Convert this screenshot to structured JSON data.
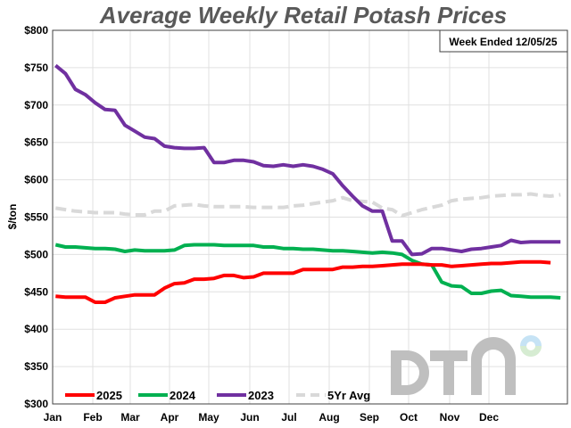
{
  "chart_data": {
    "type": "line",
    "title": "Average Weekly Retail Potash Prices",
    "annotation": "Week Ended 12/05/25",
    "xlabel": "",
    "ylabel": "$/ton",
    "x_tick_labels": [
      "Jan",
      "Feb",
      "Mar",
      "Apr",
      "May",
      "Jun",
      "Jul",
      "Aug",
      "Sep",
      "Oct",
      "Nov",
      "Dec"
    ],
    "y_tick_labels": [
      "$300",
      "$350",
      "$400",
      "$450",
      "$500",
      "$550",
      "$600",
      "$650",
      "$700",
      "$750",
      "$800"
    ],
    "ylim": [
      300,
      800
    ],
    "x_unit": "week of year (values listed weekly from January)",
    "grid": true,
    "legend_position": "bottom-left",
    "logo_text": "DTN",
    "series": [
      {
        "name": "2025",
        "color": "#ff0000",
        "style": "solid",
        "values": [
          444,
          443,
          443,
          443,
          436,
          436,
          442,
          444,
          446,
          446,
          446,
          455,
          461,
          462,
          467,
          467,
          468,
          472,
          472,
          469,
          470,
          475,
          475,
          475,
          475,
          480,
          480,
          480,
          480,
          483,
          483,
          484,
          484,
          485,
          486,
          487,
          487,
          487,
          486,
          486,
          484,
          485,
          486,
          487,
          488,
          488,
          489,
          490,
          490,
          490,
          489
        ]
      },
      {
        "name": "2024",
        "color": "#00b050",
        "style": "solid",
        "values": [
          513,
          510,
          510,
          509,
          508,
          508,
          507,
          504,
          506,
          505,
          505,
          505,
          506,
          512,
          513,
          513,
          513,
          512,
          512,
          512,
          512,
          510,
          510,
          508,
          508,
          507,
          507,
          506,
          505,
          505,
          504,
          503,
          502,
          503,
          502,
          500,
          492,
          487,
          486,
          463,
          458,
          457,
          448,
          448,
          451,
          452,
          445,
          444,
          443,
          443,
          443,
          442
        ]
      },
      {
        "name": "2023",
        "color": "#7030a0",
        "style": "solid",
        "values": [
          753,
          742,
          721,
          714,
          703,
          694,
          693,
          673,
          665,
          657,
          655,
          645,
          643,
          642,
          642,
          643,
          623,
          623,
          626,
          626,
          624,
          619,
          618,
          620,
          618,
          620,
          618,
          614,
          608,
          592,
          578,
          565,
          558,
          558,
          518,
          518,
          500,
          501,
          508,
          508,
          506,
          504,
          507,
          508,
          510,
          512,
          519,
          516,
          517,
          517,
          517,
          517
        ]
      },
      {
        "name": "5Yr Avg",
        "color": "#d9d9d9",
        "style": "dashed",
        "values": [
          562,
          560,
          558,
          557,
          556,
          556,
          556,
          554,
          553,
          553,
          558,
          558,
          565,
          566,
          567,
          565,
          564,
          564,
          564,
          564,
          563,
          563,
          563,
          563,
          565,
          566,
          568,
          570,
          572,
          576,
          572,
          571,
          570,
          562,
          560,
          552,
          556,
          560,
          563,
          566,
          572,
          574,
          575,
          576,
          578,
          579,
          580,
          580,
          581,
          579,
          578,
          580
        ]
      }
    ]
  }
}
